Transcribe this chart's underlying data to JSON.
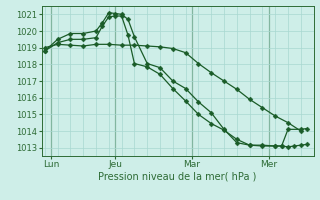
{
  "xlabel": "Pression niveau de la mer( hPa )",
  "bg_color": "#ceeee8",
  "grid_color": "#a8d8d0",
  "line_color": "#1a5c28",
  "tick_color": "#2d6b35",
  "ylim": [
    1012.5,
    1021.5
  ],
  "xlim": [
    -0.5,
    42
  ],
  "xtick_labels": [
    "Lun",
    "Jeu",
    "Mar",
    "Mer"
  ],
  "xtick_positions": [
    1,
    11,
    23,
    35
  ],
  "vline_positions": [
    1,
    11,
    23,
    35
  ],
  "ytick_values": [
    1013,
    1014,
    1015,
    1016,
    1017,
    1018,
    1019,
    1020,
    1021
  ],
  "line1_x": [
    0,
    2,
    4,
    6,
    8,
    10,
    12,
    14,
    16,
    18,
    20,
    22,
    24,
    26,
    28,
    30,
    32,
    34,
    36,
    38,
    40
  ],
  "line1_y": [
    1019.0,
    1019.2,
    1019.15,
    1019.1,
    1019.2,
    1019.2,
    1019.15,
    1019.15,
    1019.1,
    1019.05,
    1018.95,
    1018.7,
    1018.05,
    1017.5,
    1017.0,
    1016.5,
    1015.9,
    1015.4,
    1014.9,
    1014.5,
    1014.0
  ],
  "line2_x": [
    0,
    2,
    4,
    6,
    8,
    9,
    10,
    11,
    12,
    13,
    14,
    16,
    18,
    20,
    22,
    24,
    26,
    28,
    30,
    32,
    34,
    36,
    37,
    38,
    39,
    40,
    41
  ],
  "line2_y": [
    1018.8,
    1019.5,
    1019.85,
    1019.85,
    1020.0,
    1020.5,
    1021.1,
    1021.05,
    1021.0,
    1020.7,
    1019.65,
    1018.05,
    1017.8,
    1017.0,
    1016.55,
    1015.75,
    1015.1,
    1014.1,
    1013.3,
    1013.15,
    1013.15,
    1013.1,
    1013.1,
    1013.05,
    1013.1,
    1013.15,
    1013.2
  ],
  "line3_x": [
    0,
    2,
    4,
    6,
    8,
    9,
    10,
    11,
    12,
    13,
    14,
    16,
    18,
    20,
    22,
    24,
    26,
    28,
    30,
    32,
    34,
    36,
    37,
    38,
    40,
    41
  ],
  "line3_y": [
    1018.8,
    1019.3,
    1019.5,
    1019.5,
    1019.6,
    1020.3,
    1020.85,
    1020.9,
    1020.9,
    1019.75,
    1018.05,
    1017.85,
    1017.4,
    1016.55,
    1015.8,
    1015.0,
    1014.45,
    1014.05,
    1013.5,
    1013.15,
    1013.1,
    1013.1,
    1013.1,
    1014.1,
    1014.1,
    1014.15
  ]
}
